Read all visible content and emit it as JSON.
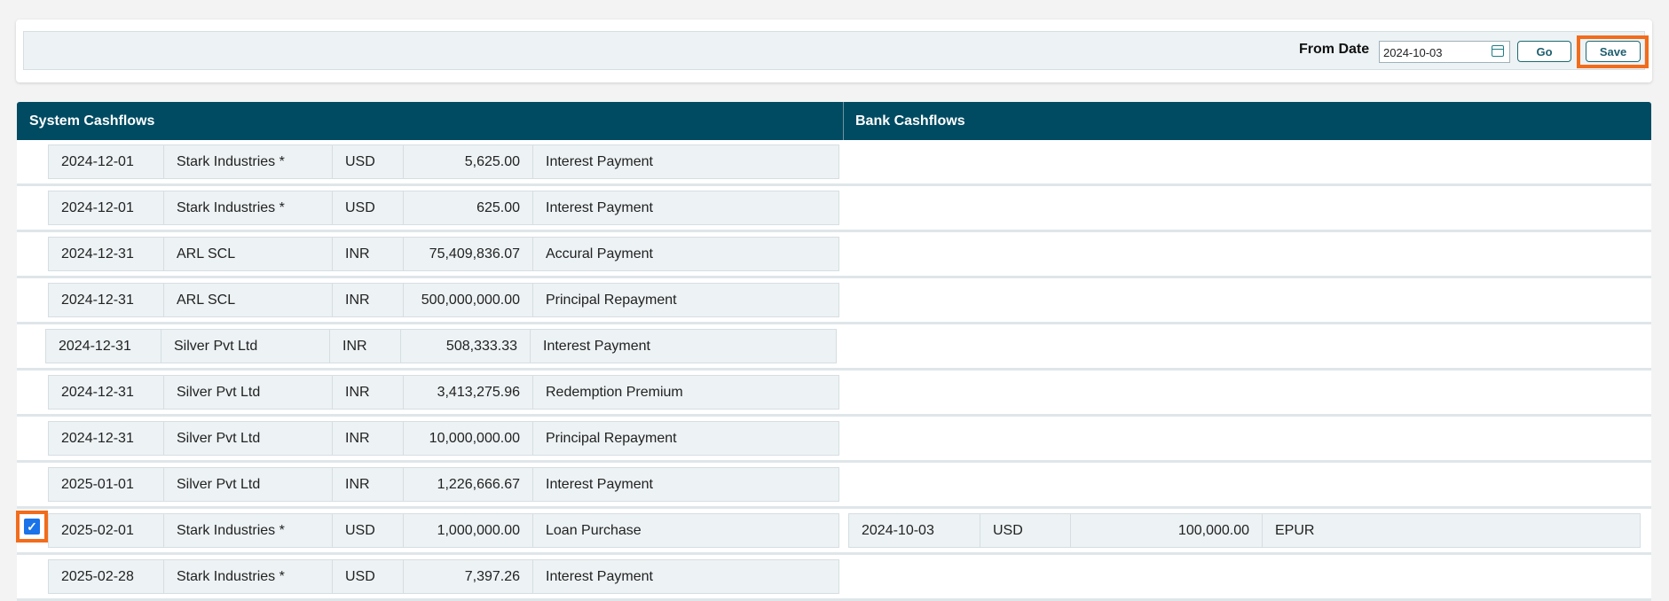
{
  "filter": {
    "from_date_label": "From Date",
    "from_date_value": "2024-10-03",
    "go_label": "Go",
    "save_label": "Save"
  },
  "headers": {
    "system": "System Cashflows",
    "bank": "Bank Cashflows"
  },
  "rows": [
    {
      "date": "2024-12-01",
      "name": "Stark Industries *",
      "ccy": "USD",
      "amount": "5,625.00",
      "desc": "Interest Payment"
    },
    {
      "date": "2024-12-01",
      "name": "Stark Industries *",
      "ccy": "USD",
      "amount": "625.00",
      "desc": "Interest Payment"
    },
    {
      "date": "2024-12-31",
      "name": "ARL SCL",
      "ccy": "INR",
      "amount": "75,409,836.07",
      "desc": "Accural Payment"
    },
    {
      "date": "2024-12-31",
      "name": "ARL SCL",
      "ccy": "INR",
      "amount": "500,000,000.00",
      "desc": "Principal Repayment"
    },
    {
      "date": "2024-12-31",
      "name": "Silver Pvt Ltd",
      "ccy": "INR",
      "amount": "508,333.33",
      "desc": "Interest Payment"
    },
    {
      "date": "2024-12-31",
      "name": "Silver Pvt Ltd",
      "ccy": "INR",
      "amount": "3,413,275.96",
      "desc": "Redemption Premium"
    },
    {
      "date": "2024-12-31",
      "name": "Silver Pvt Ltd",
      "ccy": "INR",
      "amount": "10,000,000.00",
      "desc": "Principal Repayment"
    },
    {
      "date": "2025-01-01",
      "name": "Silver Pvt Ltd",
      "ccy": "INR",
      "amount": "1,226,666.67",
      "desc": "Interest Payment"
    },
    {
      "date": "2025-02-01",
      "name": "Stark Industries *",
      "ccy": "USD",
      "amount": "1,000,000.00",
      "desc": "Loan Purchase",
      "checked": true,
      "bank": {
        "date": "2024-10-03",
        "ccy": "USD",
        "amount": "100,000.00",
        "desc": "EPUR"
      }
    },
    {
      "date": "2025-02-28",
      "name": "Stark Industries *",
      "ccy": "USD",
      "amount": "7,397.26",
      "desc": "Interest Payment"
    }
  ],
  "colors": {
    "header": "#004b62",
    "highlight": "#f26c1b",
    "checkbox": "#1a73e8"
  }
}
